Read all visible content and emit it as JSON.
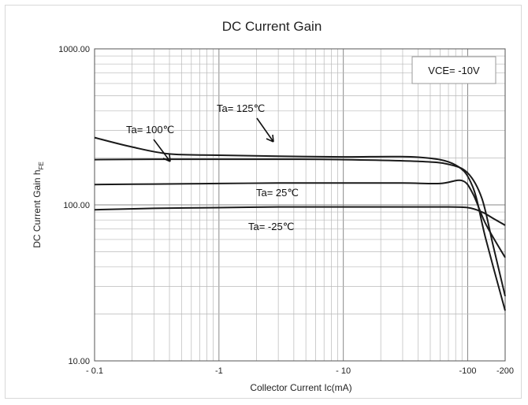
{
  "chart_data": {
    "type": "line",
    "title": "DC Current Gain",
    "xlabel": "Collector Current  Ic(mA)",
    "ylabel": "DC Current Gain  h",
    "ylabel_sub": "FE",
    "x_scale": "log",
    "y_scale": "log",
    "xlim": [
      0.1,
      200
    ],
    "ylim": [
      10,
      1000
    ],
    "x_tick_labels": [
      {
        "value": 0.1,
        "label": "- 0.1"
      },
      {
        "value": 1,
        "label": "-1"
      },
      {
        "value": 10,
        "label": "- 10"
      },
      {
        "value": 100,
        "label": "-100"
      },
      {
        "value": 200,
        "label": "-200"
      }
    ],
    "y_tick_labels": [
      {
        "value": 1000,
        "label": "1000.00"
      },
      {
        "value": 100,
        "label": "100.00"
      },
      {
        "value": 10,
        "label": "10.00"
      }
    ],
    "grid": true,
    "condition_box": "VCE= -10V",
    "series": [
      {
        "name": "Ta= 125℃",
        "x": [
          0.1,
          0.2,
          0.4,
          1,
          3,
          10,
          40,
          80,
          110,
          140,
          200
        ],
        "y": [
          270,
          235,
          212,
          208,
          205,
          203,
          202,
          180,
          130,
          60,
          21
        ]
      },
      {
        "name": "Ta= 100℃",
        "x": [
          0.1,
          0.3,
          1,
          3,
          10,
          40,
          70,
          100,
          130,
          160,
          200
        ],
        "y": [
          195,
          196,
          196,
          196,
          195,
          190,
          182,
          160,
          110,
          55,
          26
        ]
      },
      {
        "name": "Ta= 25℃",
        "x": [
          0.1,
          0.3,
          1,
          3,
          10,
          30,
          60,
          90,
          110,
          140,
          200
        ],
        "y": [
          135,
          136,
          137,
          138,
          138,
          138,
          137,
          143,
          118,
          75,
          46
        ]
      },
      {
        "name": "Ta= -25℃",
        "x": [
          0.1,
          0.3,
          1,
          3,
          10,
          30,
          60,
          100,
          130,
          160,
          200
        ],
        "y": [
          93,
          95,
          96,
          97,
          97,
          97,
          97,
          96,
          90,
          82,
          74
        ]
      }
    ],
    "annotations": [
      {
        "text": "Ta= 125℃",
        "series": "Ta= 125℃"
      },
      {
        "text": "Ta= 100℃",
        "series": "Ta= 100℃"
      },
      {
        "text": "Ta= 25℃",
        "series": "Ta= 25℃"
      },
      {
        "text": "Ta= -25℃",
        "series": "Ta= -25℃"
      }
    ]
  }
}
